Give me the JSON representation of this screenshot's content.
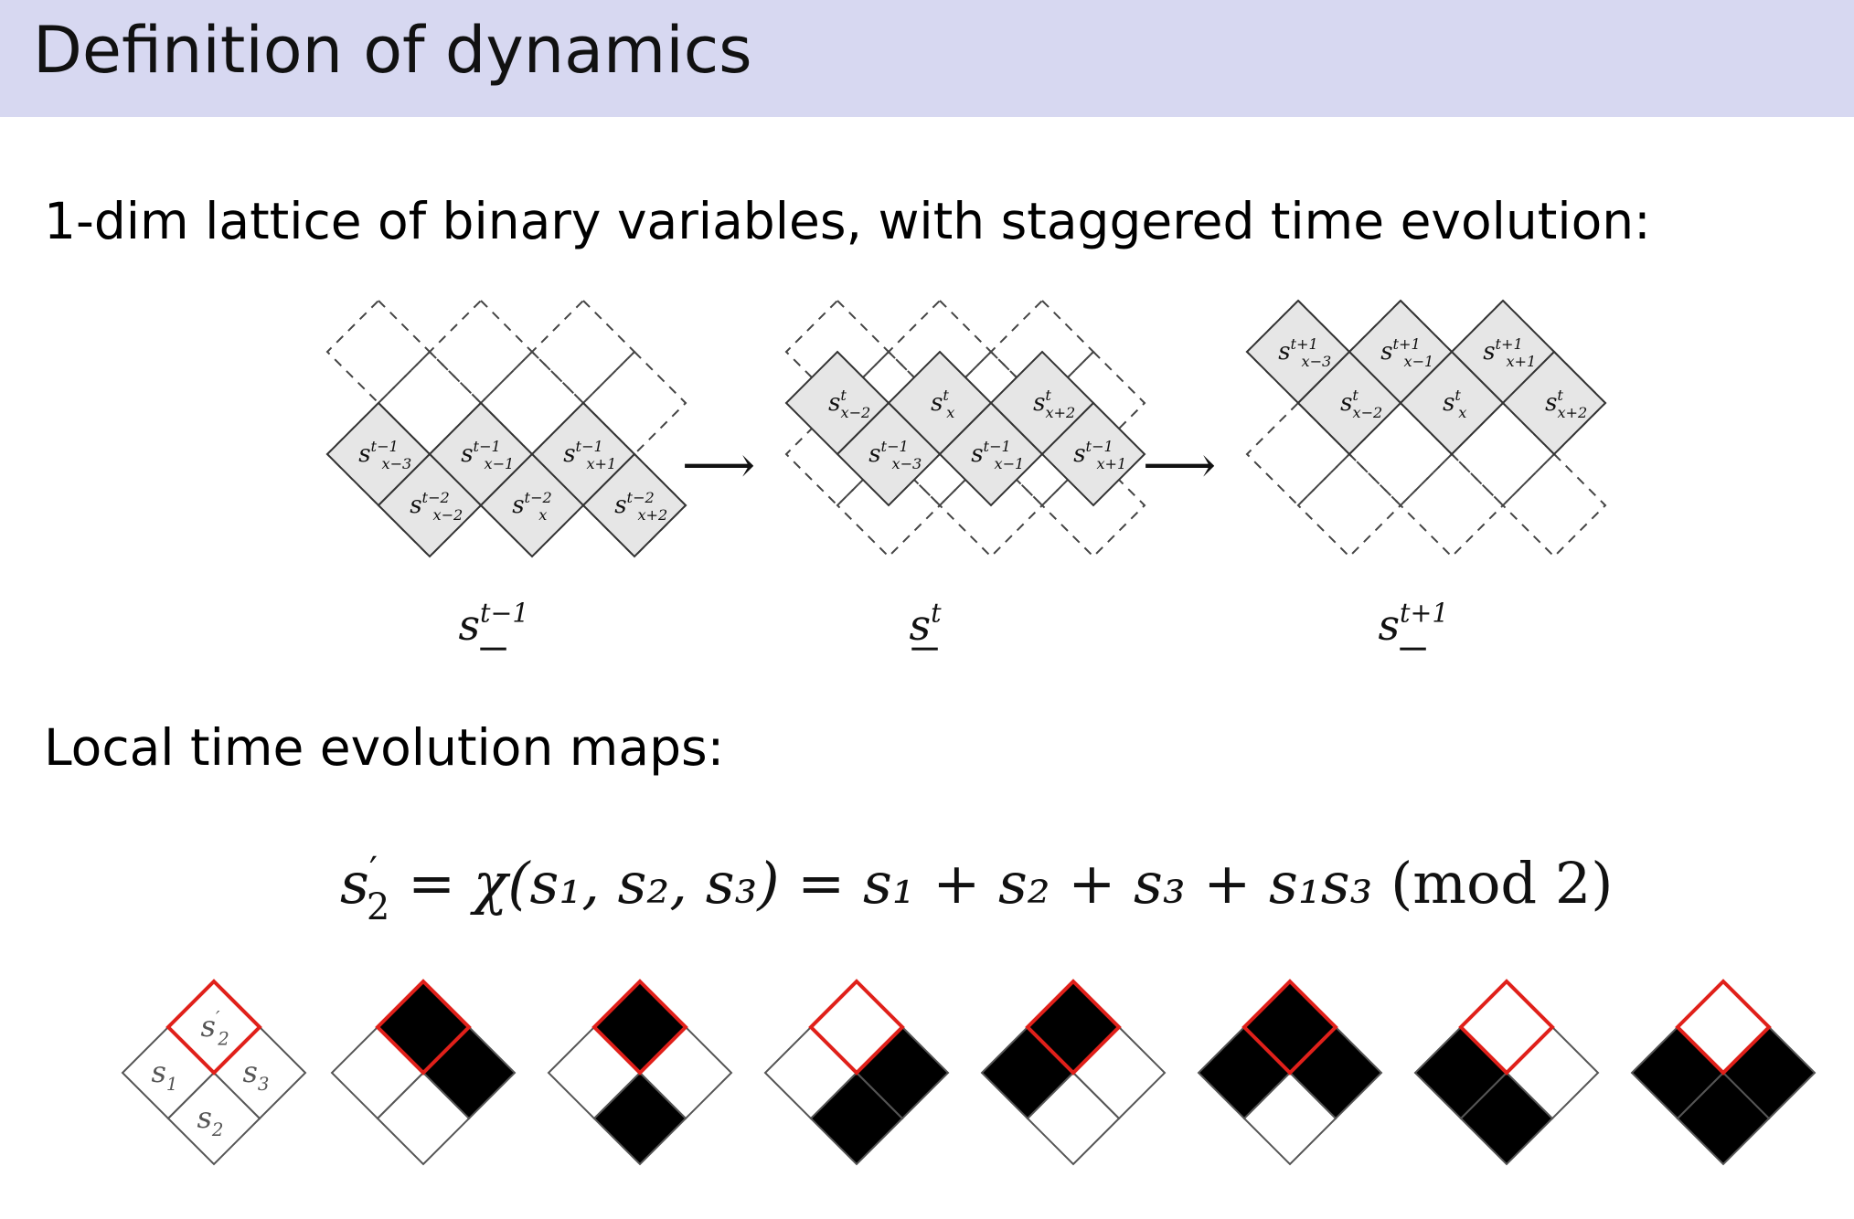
{
  "title": "Definition of dynamics",
  "intro_text": "1-dim lattice of binary variables, with staggered time evolution:",
  "local_maps_heading": "Local time evolution maps:",
  "colors": {
    "title_bar": "#d7d8f1",
    "cell_fill": "#e6e6e6",
    "highlight": "#e0201a",
    "black_cell": "#000000"
  },
  "lattice": {
    "panels": [
      {
        "caption": {
          "base": "s",
          "sup": "t−1"
        },
        "top_row_labels": [
          {
            "base": "s",
            "sup": "t−1",
            "sub": "x−3"
          },
          {
            "base": "s",
            "sup": "t−1",
            "sub": "x−1"
          },
          {
            "base": "s",
            "sup": "t−1",
            "sub": "x+1"
          }
        ],
        "bottom_row_labels": [
          {
            "base": "s",
            "sup": "t−2",
            "sub": "x−2"
          },
          {
            "base": "s",
            "sup": "t−2",
            "sub": "x"
          },
          {
            "base": "s",
            "sup": "t−2",
            "sub": "x+2"
          }
        ]
      },
      {
        "caption": {
          "base": "s",
          "sup": "t"
        },
        "top_row_labels": [
          {
            "base": "s",
            "sup": "t",
            "sub": "x−2"
          },
          {
            "base": "s",
            "sup": "t",
            "sub": "x"
          },
          {
            "base": "s",
            "sup": "t",
            "sub": "x+2"
          }
        ],
        "bottom_row_labels": [
          {
            "base": "s",
            "sup": "t−1",
            "sub": "x−3"
          },
          {
            "base": "s",
            "sup": "t−1",
            "sub": "x−1"
          },
          {
            "base": "s",
            "sup": "t−1",
            "sub": "x+1"
          }
        ]
      },
      {
        "caption": {
          "base": "s",
          "sup": "t+1"
        },
        "top_row_labels": [
          {
            "base": "s",
            "sup": "t+1",
            "sub": "x−3"
          },
          {
            "base": "s",
            "sup": "t+1",
            "sub": "x−1"
          },
          {
            "base": "s",
            "sup": "t+1",
            "sub": "x+1"
          }
        ],
        "bottom_row_labels": [
          {
            "base": "s",
            "sup": "t",
            "sub": "x−2"
          },
          {
            "base": "s",
            "sup": "t",
            "sub": "x"
          },
          {
            "base": "s",
            "sup": "t",
            "sub": "x+2"
          }
        ]
      }
    ],
    "arrow_glyph": "⟶"
  },
  "equation": {
    "lhs_base": "s",
    "lhs_prime": "′",
    "lhs_sub": "2",
    "eq1": " = ",
    "chi": "χ",
    "args": "(s₁, s₂, s₃)",
    "eq2": " = ",
    "rhs": "s₁ + s₂ + s₃ + s₁s₃",
    "mod": "(mod 2)"
  },
  "rule_legend": {
    "top_label": {
      "base": "s",
      "sup": "′",
      "sub": "2"
    },
    "left_label": {
      "base": "s",
      "sub": "1"
    },
    "right_label": {
      "base": "s",
      "sub": "3"
    },
    "bottom_label": {
      "base": "s",
      "sub": "2"
    }
  },
  "rules": [
    {
      "s1": 0,
      "s2": 0,
      "s3": 1,
      "out": 1
    },
    {
      "s1": 0,
      "s2": 1,
      "s3": 0,
      "out": 1
    },
    {
      "s1": 0,
      "s2": 1,
      "s3": 1,
      "out": 0
    },
    {
      "s1": 1,
      "s2": 0,
      "s3": 0,
      "out": 1
    },
    {
      "s1": 1,
      "s2": 0,
      "s3": 1,
      "out": 1
    },
    {
      "s1": 1,
      "s2": 1,
      "s3": 0,
      "out": 0
    },
    {
      "s1": 1,
      "s2": 1,
      "s3": 1,
      "out": 0
    }
  ]
}
